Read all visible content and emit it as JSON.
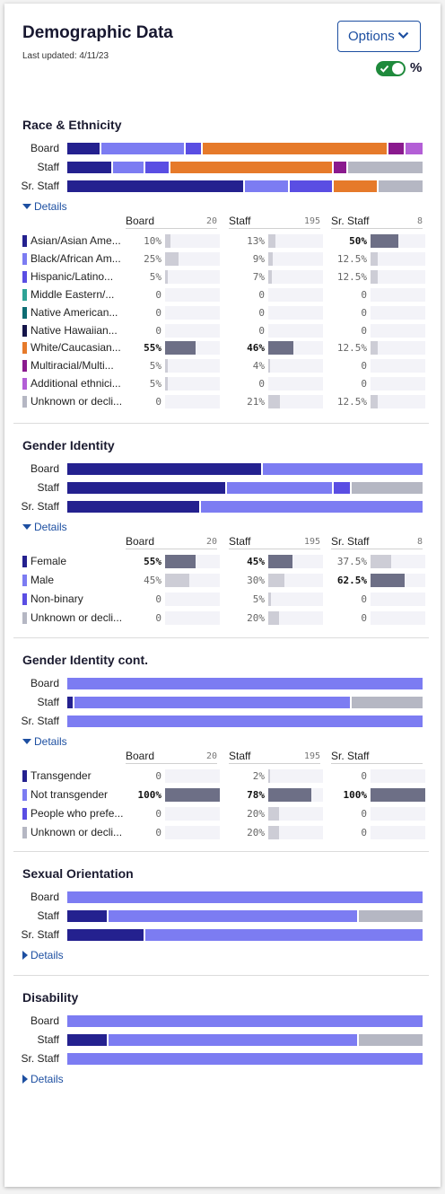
{
  "header": {
    "title": "Demographic Data",
    "last_updated": "Last updated: 4/11/23",
    "options_label": "Options",
    "percent_label": "%",
    "toggle_on": true
  },
  "colors": {
    "navy": "#24218f",
    "periwinkle": "#7c7cf2",
    "blue_violet": "#5a4ee3",
    "teal": "#2ea396",
    "dark_teal": "#0d6c73",
    "dark_navy": "#15154a",
    "orange": "#e67a2a",
    "purple": "#8a1a8e",
    "lavender": "#b35fd6",
    "gray": "#b5b7c3",
    "accent": "#1d4fa1",
    "toggle_green": "#1f8a3c"
  },
  "sections": [
    {
      "title": "Race & Ethnicity",
      "details_label": "Details",
      "expanded": true,
      "bars": [
        {
          "label": "Board",
          "segments": [
            {
              "color": "#24218f",
              "value": 10
            },
            {
              "color": "#7c7cf2",
              "value": 25
            },
            {
              "color": "#5a4ee3",
              "value": 5
            },
            {
              "color": "#e67a2a",
              "value": 55
            },
            {
              "color": "#8a1a8e",
              "value": 5
            },
            {
              "color": "#b35fd6",
              "value": 5
            }
          ]
        },
        {
          "label": "Staff",
          "segments": [
            {
              "color": "#24218f",
              "value": 13
            },
            {
              "color": "#7c7cf2",
              "value": 9
            },
            {
              "color": "#5a4ee3",
              "value": 7
            },
            {
              "color": "#e67a2a",
              "value": 46
            },
            {
              "color": "#8a1a8e",
              "value": 4
            },
            {
              "color": "#b5b7c3",
              "value": 21
            }
          ]
        },
        {
          "label": "Sr. Staff",
          "segments": [
            {
              "color": "#24218f",
              "value": 50
            },
            {
              "color": "#7c7cf2",
              "value": 12.5
            },
            {
              "color": "#5a4ee3",
              "value": 12.5
            },
            {
              "color": "#e67a2a",
              "value": 12.5
            },
            {
              "color": "#b5b7c3",
              "value": 12.5
            }
          ]
        }
      ],
      "columns": [
        {
          "name": "Board",
          "count": "20"
        },
        {
          "name": "Staff",
          "count": "195"
        },
        {
          "name": "Sr. Staff",
          "count": "8"
        }
      ],
      "rows": [
        {
          "label": "Asian/Asian Ame...",
          "color": "#24218f",
          "values": [
            {
              "text": "10%",
              "v": 10,
              "bold": false
            },
            {
              "text": "13%",
              "v": 13,
              "bold": false
            },
            {
              "text": "50%",
              "v": 50,
              "bold": true
            }
          ]
        },
        {
          "label": "Black/African Am...",
          "color": "#7c7cf2",
          "values": [
            {
              "text": "25%",
              "v": 25,
              "bold": false
            },
            {
              "text": "9%",
              "v": 9,
              "bold": false
            },
            {
              "text": "12.5%",
              "v": 12.5,
              "bold": false
            }
          ]
        },
        {
          "label": "Hispanic/Latino...",
          "color": "#5a4ee3",
          "values": [
            {
              "text": "5%",
              "v": 5,
              "bold": false
            },
            {
              "text": "7%",
              "v": 7,
              "bold": false
            },
            {
              "text": "12.5%",
              "v": 12.5,
              "bold": false
            }
          ]
        },
        {
          "label": "Middle Eastern/...",
          "color": "#2ea396",
          "values": [
            {
              "text": "0",
              "v": 0,
              "bold": false
            },
            {
              "text": "0",
              "v": 0,
              "bold": false
            },
            {
              "text": "0",
              "v": 0,
              "bold": false
            }
          ]
        },
        {
          "label": "Native American...",
          "color": "#0d6c73",
          "values": [
            {
              "text": "0",
              "v": 0,
              "bold": false
            },
            {
              "text": "0",
              "v": 0,
              "bold": false
            },
            {
              "text": "0",
              "v": 0,
              "bold": false
            }
          ]
        },
        {
          "label": "Native Hawaiian...",
          "color": "#15154a",
          "values": [
            {
              "text": "0",
              "v": 0,
              "bold": false
            },
            {
              "text": "0",
              "v": 0,
              "bold": false
            },
            {
              "text": "0",
              "v": 0,
              "bold": false
            }
          ]
        },
        {
          "label": "White/Caucasian...",
          "color": "#e67a2a",
          "values": [
            {
              "text": "55%",
              "v": 55,
              "bold": true
            },
            {
              "text": "46%",
              "v": 46,
              "bold": true
            },
            {
              "text": "12.5%",
              "v": 12.5,
              "bold": false
            }
          ]
        },
        {
          "label": "Multiracial/Multi...",
          "color": "#8a1a8e",
          "values": [
            {
              "text": "5%",
              "v": 5,
              "bold": false
            },
            {
              "text": "4%",
              "v": 4,
              "bold": false
            },
            {
              "text": "0",
              "v": 0,
              "bold": false
            }
          ]
        },
        {
          "label": "Additional ethnici...",
          "color": "#b35fd6",
          "values": [
            {
              "text": "5%",
              "v": 5,
              "bold": false
            },
            {
              "text": "0",
              "v": 0,
              "bold": false
            },
            {
              "text": "0",
              "v": 0,
              "bold": false
            }
          ]
        },
        {
          "label": "Unknown or decli...",
          "color": "#b5b7c3",
          "values": [
            {
              "text": "0",
              "v": 0,
              "bold": false
            },
            {
              "text": "21%",
              "v": 21,
              "bold": false
            },
            {
              "text": "12.5%",
              "v": 12.5,
              "bold": false
            }
          ]
        }
      ]
    },
    {
      "title": "Gender Identity",
      "details_label": "Details",
      "expanded": true,
      "bars": [
        {
          "label": "Board",
          "segments": [
            {
              "color": "#24218f",
              "value": 55
            },
            {
              "color": "#7c7cf2",
              "value": 45
            }
          ]
        },
        {
          "label": "Staff",
          "segments": [
            {
              "color": "#24218f",
              "value": 45
            },
            {
              "color": "#7c7cf2",
              "value": 30
            },
            {
              "color": "#5a4ee3",
              "value": 5
            },
            {
              "color": "#b5b7c3",
              "value": 20
            }
          ]
        },
        {
          "label": "Sr. Staff",
          "segments": [
            {
              "color": "#24218f",
              "value": 37.5
            },
            {
              "color": "#7c7cf2",
              "value": 62.5
            }
          ]
        }
      ],
      "columns": [
        {
          "name": "Board",
          "count": "20"
        },
        {
          "name": "Staff",
          "count": "195"
        },
        {
          "name": "Sr. Staff",
          "count": "8"
        }
      ],
      "rows": [
        {
          "label": "Female",
          "color": "#24218f",
          "values": [
            {
              "text": "55%",
              "v": 55,
              "bold": true
            },
            {
              "text": "45%",
              "v": 45,
              "bold": true
            },
            {
              "text": "37.5%",
              "v": 37.5,
              "bold": false
            }
          ]
        },
        {
          "label": "Male",
          "color": "#7c7cf2",
          "values": [
            {
              "text": "45%",
              "v": 45,
              "bold": false
            },
            {
              "text": "30%",
              "v": 30,
              "bold": false
            },
            {
              "text": "62.5%",
              "v": 62.5,
              "bold": true
            }
          ]
        },
        {
          "label": "Non-binary",
          "color": "#5a4ee3",
          "values": [
            {
              "text": "0",
              "v": 0,
              "bold": false
            },
            {
              "text": "5%",
              "v": 5,
              "bold": false
            },
            {
              "text": "0",
              "v": 0,
              "bold": false
            }
          ]
        },
        {
          "label": "Unknown or decli...",
          "color": "#b5b7c3",
          "values": [
            {
              "text": "0",
              "v": 0,
              "bold": false
            },
            {
              "text": "20%",
              "v": 20,
              "bold": false
            },
            {
              "text": "0",
              "v": 0,
              "bold": false
            }
          ]
        }
      ]
    },
    {
      "title": "Gender Identity cont.",
      "details_label": "Details",
      "expanded": true,
      "bars": [
        {
          "label": "Board",
          "segments": [
            {
              "color": "#7c7cf2",
              "value": 100
            }
          ]
        },
        {
          "label": "Staff",
          "segments": [
            {
              "color": "#24218f",
              "value": 2
            },
            {
              "color": "#7c7cf2",
              "value": 78
            },
            {
              "color": "#b5b7c3",
              "value": 20
            }
          ]
        },
        {
          "label": "Sr. Staff",
          "segments": [
            {
              "color": "#7c7cf2",
              "value": 100
            }
          ]
        }
      ],
      "columns": [
        {
          "name": "Board",
          "count": "20"
        },
        {
          "name": "Staff",
          "count": "195"
        },
        {
          "name": "Sr. Staff",
          "count": ""
        }
      ],
      "rows": [
        {
          "label": "Transgender",
          "color": "#24218f",
          "values": [
            {
              "text": "0",
              "v": 0,
              "bold": false
            },
            {
              "text": "2%",
              "v": 2,
              "bold": false
            },
            {
              "text": "0",
              "v": 0,
              "bold": false
            }
          ]
        },
        {
          "label": "Not transgender",
          "color": "#7c7cf2",
          "values": [
            {
              "text": "100%",
              "v": 100,
              "bold": true
            },
            {
              "text": "78%",
              "v": 78,
              "bold": true
            },
            {
              "text": "100%",
              "v": 100,
              "bold": true
            }
          ]
        },
        {
          "label": "People who prefe...",
          "color": "#5a4ee3",
          "values": [
            {
              "text": "0",
              "v": 0,
              "bold": false
            },
            {
              "text": "20%",
              "v": 20,
              "bold": false
            },
            {
              "text": "0",
              "v": 0,
              "bold": false
            }
          ]
        },
        {
          "label": "Unknown or decli...",
          "color": "#b5b7c3",
          "values": [
            {
              "text": "0",
              "v": 0,
              "bold": false
            },
            {
              "text": "20%",
              "v": 20,
              "bold": false
            },
            {
              "text": "0",
              "v": 0,
              "bold": false
            }
          ]
        }
      ]
    },
    {
      "title": "Sexual Orientation",
      "details_label": "Details",
      "expanded": false,
      "bars": [
        {
          "label": "Board",
          "segments": [
            {
              "color": "#7c7cf2",
              "value": 100
            }
          ]
        },
        {
          "label": "Staff",
          "segments": [
            {
              "color": "#24218f",
              "value": 11.5
            },
            {
              "color": "#7c7cf2",
              "value": 70.5
            },
            {
              "color": "#b5b7c3",
              "value": 18
            }
          ]
        },
        {
          "label": "Sr. Staff",
          "segments": [
            {
              "color": "#24218f",
              "value": 22
            },
            {
              "color": "#7c7cf2",
              "value": 78
            }
          ]
        }
      ]
    },
    {
      "title": "Disability",
      "details_label": "Details",
      "expanded": false,
      "bars": [
        {
          "label": "Board",
          "segments": [
            {
              "color": "#7c7cf2",
              "value": 100
            }
          ]
        },
        {
          "label": "Staff",
          "segments": [
            {
              "color": "#24218f",
              "value": 11.5
            },
            {
              "color": "#7c7cf2",
              "value": 70.5
            },
            {
              "color": "#b5b7c3",
              "value": 18
            }
          ]
        },
        {
          "label": "Sr. Staff",
          "segments": [
            {
              "color": "#7c7cf2",
              "value": 100
            }
          ]
        }
      ]
    }
  ]
}
